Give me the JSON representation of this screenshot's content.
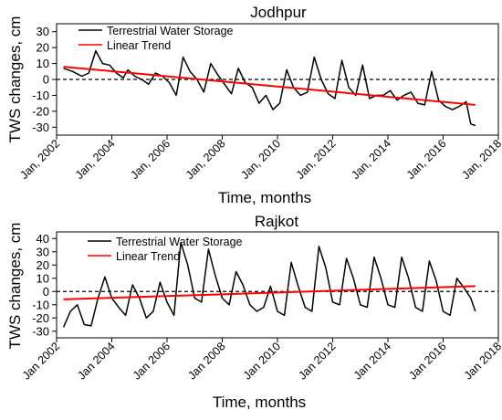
{
  "colors": {
    "series": "#000000",
    "trend": "#ff0000",
    "zero_line": "#000000"
  },
  "chart_data": [
    {
      "type": "line",
      "title": "Jodhpur",
      "xlabel": "Time, months",
      "ylabel": "TWS changes, cm",
      "xlim": [
        "2002-01",
        "2018-01"
      ],
      "ylim": [
        -35,
        35
      ],
      "yticks": [
        -30,
        -20,
        -10,
        0,
        10,
        20,
        30
      ],
      "xtick_labels": [
        "Jan, 2002",
        "Jan, 2004",
        "Jan, 2006",
        "Jan, 2008",
        "Jan, 2010",
        "Jan, 2012",
        "Jan, 2014",
        "Jan, 2016",
        "Jan, 2018"
      ],
      "reference_line": {
        "y": 0,
        "style": "dashed"
      },
      "legend": {
        "position": "top-left"
      },
      "grid": false,
      "series": [
        {
          "name": "Terrestrial Water Storage",
          "color": "#000000",
          "x": [
            "2002-04",
            "2002-08",
            "2002-12",
            "2003-03",
            "2003-06",
            "2003-09",
            "2003-12",
            "2004-03",
            "2004-06",
            "2004-08",
            "2004-11",
            "2005-02",
            "2005-05",
            "2005-08",
            "2005-11",
            "2006-02",
            "2006-05",
            "2006-08",
            "2006-11",
            "2007-02",
            "2007-05",
            "2007-08",
            "2007-11",
            "2008-02",
            "2008-05",
            "2008-08",
            "2008-11",
            "2009-02",
            "2009-05",
            "2009-08",
            "2009-11",
            "2010-02",
            "2010-05",
            "2010-08",
            "2010-11",
            "2011-02",
            "2011-05",
            "2011-08",
            "2011-11",
            "2012-02",
            "2012-05",
            "2012-08",
            "2012-11",
            "2013-02",
            "2013-05",
            "2013-08",
            "2013-11",
            "2014-02",
            "2014-05",
            "2014-08",
            "2014-11",
            "2015-02",
            "2015-05",
            "2015-08",
            "2015-11",
            "2016-02",
            "2016-05",
            "2016-08",
            "2016-11",
            "2017-01",
            "2017-03"
          ],
          "y": [
            7,
            5,
            2,
            4,
            18,
            10,
            9,
            4,
            1,
            6,
            2,
            0,
            -3,
            4,
            2,
            -2,
            -10,
            14,
            5,
            0,
            -8,
            10,
            3,
            -3,
            -9,
            7,
            -2,
            -5,
            -15,
            -10,
            -19,
            -15,
            6,
            -5,
            -10,
            -8,
            14,
            0,
            -9,
            -12,
            12,
            -5,
            -10,
            9,
            -12,
            -10,
            -10,
            -7,
            -13,
            -10,
            -8,
            -15,
            -16,
            5,
            -13,
            -17,
            -19,
            -17,
            -14,
            -28,
            -29
          ]
        },
        {
          "name": "Linear Trend",
          "color": "#ff0000",
          "x": [
            "2002-04",
            "2017-03"
          ],
          "y": [
            8,
            -16
          ]
        }
      ]
    },
    {
      "type": "line",
      "title": "Rajkot",
      "xlabel": "Time, months",
      "ylabel": "TWS changes, cm",
      "xlim": [
        "2002-01",
        "2018-01"
      ],
      "ylim": [
        -35,
        45
      ],
      "yticks": [
        -30,
        -20,
        -10,
        0,
        10,
        20,
        30,
        40
      ],
      "xtick_labels": [
        "Jan 2002",
        "Jan 2004",
        "Jan 2006",
        "Jan 2008",
        "Jan 2010",
        "Jan 2012",
        "Jan 2014",
        "Jan 2016",
        "Jan 2018"
      ],
      "reference_line": {
        "y": 0,
        "style": "dashed"
      },
      "legend": {
        "position": "top"
      },
      "grid": false,
      "series": [
        {
          "name": "Terrestrial Water Storage",
          "color": "#000000",
          "x": [
            "2002-04",
            "2002-07",
            "2002-10",
            "2003-01",
            "2003-04",
            "2003-07",
            "2003-10",
            "2004-01",
            "2004-04",
            "2004-07",
            "2004-10",
            "2005-01",
            "2005-04",
            "2005-07",
            "2005-10",
            "2006-01",
            "2006-04",
            "2006-07",
            "2006-10",
            "2007-01",
            "2007-04",
            "2007-07",
            "2007-10",
            "2008-01",
            "2008-04",
            "2008-07",
            "2008-10",
            "2009-01",
            "2009-04",
            "2009-07",
            "2009-10",
            "2010-01",
            "2010-04",
            "2010-07",
            "2010-10",
            "2011-01",
            "2011-04",
            "2011-07",
            "2011-10",
            "2012-01",
            "2012-04",
            "2012-07",
            "2012-10",
            "2013-01",
            "2013-04",
            "2013-07",
            "2013-10",
            "2014-01",
            "2014-04",
            "2014-07",
            "2014-10",
            "2015-01",
            "2015-04",
            "2015-07",
            "2015-10",
            "2016-01",
            "2016-04",
            "2016-07",
            "2016-10",
            "2017-01",
            "2017-03"
          ],
          "y": [
            -27,
            -15,
            -10,
            -25,
            -26,
            -5,
            11,
            -5,
            -12,
            -18,
            5,
            -5,
            -20,
            -15,
            7,
            -8,
            -18,
            37,
            20,
            -5,
            -8,
            32,
            12,
            -5,
            -10,
            15,
            5,
            -10,
            -15,
            -12,
            4,
            -15,
            -18,
            22,
            4,
            -12,
            -15,
            34,
            18,
            -8,
            -10,
            25,
            10,
            -10,
            -12,
            26,
            10,
            -10,
            -12,
            26,
            10,
            -12,
            -15,
            23,
            8,
            -15,
            -18,
            10,
            3,
            -5,
            -15
          ]
        },
        {
          "name": "Linear Trend",
          "color": "#ff0000",
          "x": [
            "2002-04",
            "2017-03"
          ],
          "y": [
            -6,
            4
          ]
        }
      ]
    }
  ]
}
